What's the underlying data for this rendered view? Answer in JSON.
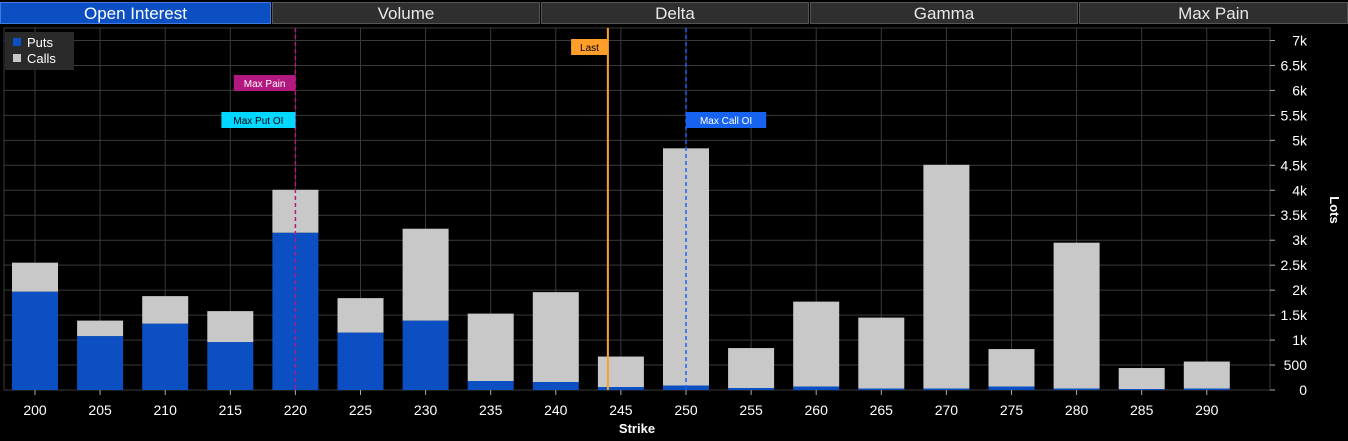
{
  "tabs": [
    {
      "label": "Open Interest",
      "active": true
    },
    {
      "label": "Volume",
      "active": false
    },
    {
      "label": "Delta",
      "active": false
    },
    {
      "label": "Gamma",
      "active": false
    },
    {
      "label": "Max Pain",
      "active": false
    }
  ],
  "legend": [
    {
      "label": "Puts",
      "color": "#0b4fc2"
    },
    {
      "label": "Calls",
      "color": "#c8c8c8"
    }
  ],
  "chart_data": {
    "type": "bar",
    "stacked": true,
    "categories": [
      "200",
      "205",
      "210",
      "215",
      "220",
      "225",
      "230",
      "235",
      "240",
      "245",
      "250",
      "255",
      "260",
      "265",
      "270",
      "275",
      "280",
      "285",
      "290"
    ],
    "series": [
      {
        "name": "Puts",
        "color": "#0b4fc2",
        "values": [
          1970,
          1080,
          1330,
          960,
          3150,
          1150,
          1390,
          180,
          160,
          60,
          90,
          40,
          70,
          30,
          30,
          70,
          30,
          20,
          30
        ]
      },
      {
        "name": "Calls",
        "color": "#c8c8c8",
        "values": [
          580,
          310,
          550,
          620,
          860,
          690,
          1840,
          1350,
          1800,
          610,
          4750,
          800,
          1700,
          1420,
          4480,
          750,
          2920,
          420,
          540
        ]
      }
    ],
    "xlabel": "Strike",
    "ylabel": "Lots",
    "ylim": [
      0,
      7250
    ],
    "yticks": [
      0,
      500,
      1000,
      1500,
      2000,
      2500,
      3000,
      3500,
      4000,
      4500,
      5000,
      5500,
      6000,
      6500,
      7000
    ],
    "ytick_labels": [
      "0",
      "500",
      "1k",
      "1.5k",
      "2k",
      "2.5k",
      "3k",
      "3.5k",
      "4k",
      "4.5k",
      "5k",
      "5.5k",
      "6k",
      "6.5k",
      "7k"
    ],
    "grid": true,
    "legend_position": "top-left",
    "markers": [
      {
        "label": "Max Pain",
        "strike": 220,
        "color": "#b3187f",
        "text_color": "#ffffff",
        "style": "dashed"
      },
      {
        "label": "Max Put OI",
        "strike": 220,
        "color": "#00d8ff",
        "text_color": "#000000",
        "style": "dashed"
      },
      {
        "label": "Last",
        "strike": 244,
        "color": "#ff9f2a",
        "text_color": "#000000",
        "style": "solid"
      },
      {
        "label": "Max Call OI",
        "strike": 250,
        "color": "#1763f0",
        "text_color": "#ffffff",
        "style": "dashed"
      }
    ]
  }
}
